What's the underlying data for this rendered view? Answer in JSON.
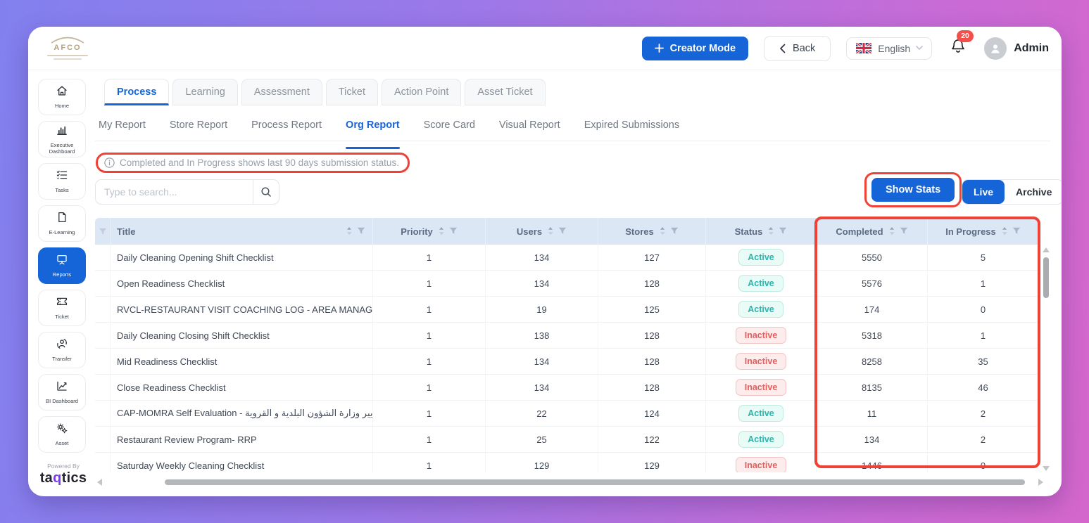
{
  "brand": {
    "logo_text": "AFCO",
    "powered_by": "Powered By",
    "powered_brand": "taqtics"
  },
  "topbar": {
    "creator_mode": "Creator Mode",
    "back": "Back",
    "language": "English",
    "notification_count": "20",
    "user": "Admin"
  },
  "sidebar": {
    "items": [
      {
        "label": "Home",
        "icon": "home-icon",
        "active": false
      },
      {
        "label": "Executive Dashboard",
        "icon": "executive-dashboard-icon",
        "active": false
      },
      {
        "label": "Tasks",
        "icon": "tasks-icon",
        "active": false
      },
      {
        "label": "E-Learning",
        "icon": "e-learning-icon",
        "active": false
      },
      {
        "label": "Reports",
        "icon": "reports-icon",
        "active": true
      },
      {
        "label": "Ticket",
        "icon": "ticket-icon",
        "active": false
      },
      {
        "label": "Transfer",
        "icon": "transfer-icon",
        "active": false
      },
      {
        "label": "BI Dashboard",
        "icon": "bi-dashboard-icon",
        "active": false
      },
      {
        "label": "Asset",
        "icon": "asset-icon",
        "active": false
      }
    ]
  },
  "tabs": {
    "active": "Process",
    "items": [
      "Process",
      "Learning",
      "Assessment",
      "Ticket",
      "Action Point",
      "Asset Ticket"
    ]
  },
  "subtabs": {
    "active": "Org Report",
    "items": [
      "My Report",
      "Store Report",
      "Process Report",
      "Org Report",
      "Score Card",
      "Visual Report",
      "Expired Submissions"
    ]
  },
  "info_note": "Completed and In Progress shows last 90 days submission status.",
  "search": {
    "placeholder": "Type to search..."
  },
  "actions": {
    "show_stats": "Show Stats",
    "live": "Live",
    "archive": "Archive"
  },
  "table": {
    "columns": [
      "Title",
      "Priority",
      "Users",
      "Stores",
      "Status",
      "Completed",
      "In Progress"
    ],
    "rows": [
      {
        "title": "Daily Cleaning Opening Shift Checklist",
        "priority": "1",
        "users": "134",
        "stores": "127",
        "status": "Active",
        "completed": "5550",
        "in_progress": "5"
      },
      {
        "title": "Open Readiness Checklist",
        "priority": "1",
        "users": "134",
        "stores": "128",
        "status": "Active",
        "completed": "5576",
        "in_progress": "1"
      },
      {
        "title": "RVCL-RESTAURANT VISIT COACHING LOG - AREA MANAGER",
        "priority": "1",
        "users": "19",
        "stores": "125",
        "status": "Active",
        "completed": "174",
        "in_progress": "0"
      },
      {
        "title": "Daily Cleaning Closing Shift Checklist",
        "priority": "1",
        "users": "138",
        "stores": "128",
        "status": "Inactive",
        "completed": "5318",
        "in_progress": "1"
      },
      {
        "title": "Mid Readiness Checklist",
        "priority": "1",
        "users": "134",
        "stores": "128",
        "status": "Inactive",
        "completed": "8258",
        "in_progress": "35"
      },
      {
        "title": "Close Readiness Checklist",
        "priority": "1",
        "users": "134",
        "stores": "128",
        "status": "Inactive",
        "completed": "8135",
        "in_progress": "46"
      },
      {
        "title": "CAP-MOMRA Self Evaluation - التقييم الذاتي لمعايير وزارة الشؤون البلدية و القروية",
        "priority": "1",
        "users": "22",
        "stores": "124",
        "status": "Active",
        "completed": "11",
        "in_progress": "2"
      },
      {
        "title": "Restaurant Review Program- RRP",
        "priority": "1",
        "users": "25",
        "stores": "122",
        "status": "Active",
        "completed": "134",
        "in_progress": "2"
      },
      {
        "title": "Saturday Weekly Cleaning Checklist",
        "priority": "1",
        "users": "129",
        "stores": "129",
        "status": "Inactive",
        "completed": "1446",
        "in_progress": "0"
      }
    ]
  },
  "colors": {
    "primary_blue": "#1565d8",
    "annotation_red": "#ee4237",
    "active_badge_teal": "#2eb5ac",
    "inactive_badge_red": "#e05f5f",
    "table_header_bg": "#dce7f6"
  }
}
